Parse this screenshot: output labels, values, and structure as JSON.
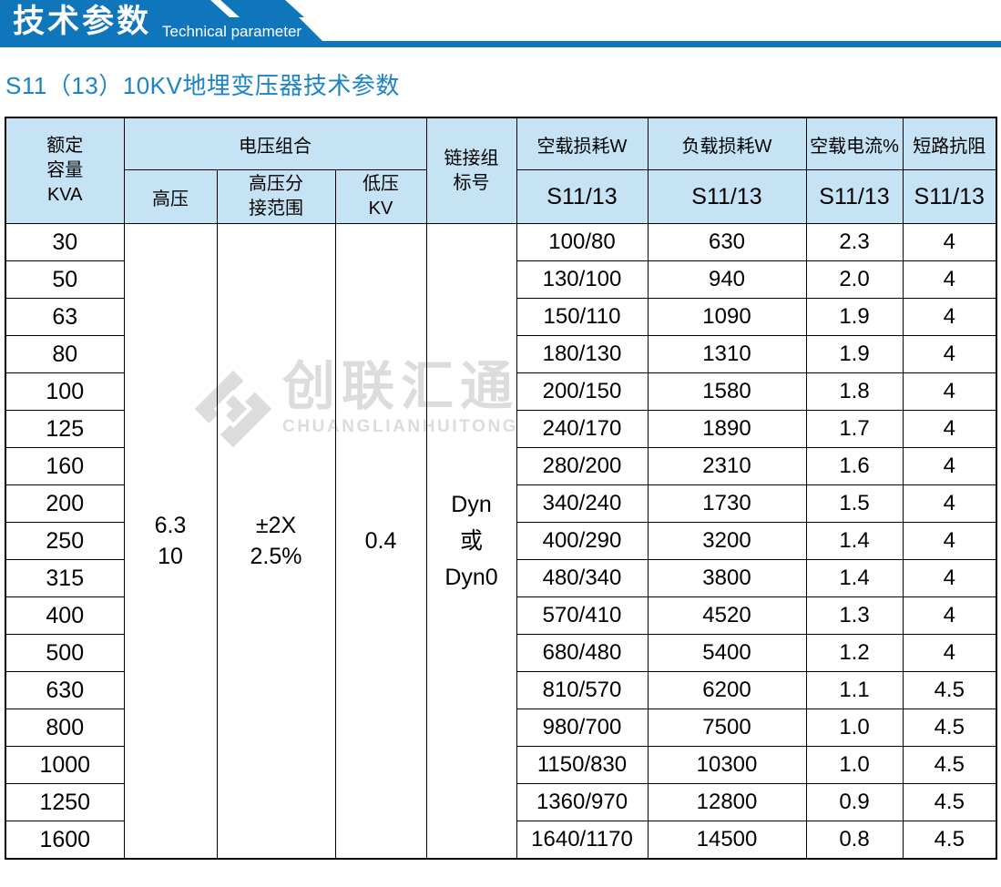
{
  "banner": {
    "title_cn": "技术参数",
    "title_en": "Technical parameter"
  },
  "section_title": "S11（13）10KV地埋变压器技术参数",
  "watermark": {
    "logo_icon": "diamond-logo",
    "cn": "创联汇通",
    "en": "CHUANGLIANHUITONG"
  },
  "colors": {
    "brand_blue": "#0f76bc",
    "header_bg": "#c5e3f5",
    "title_blue": "#1b84c7",
    "watermark_gray": "#dcdcdc",
    "border": "#000000"
  },
  "table": {
    "headers": {
      "capacity": "额定\n容量\nKVA",
      "voltage_group": "电压组合",
      "hv": "高压",
      "hv_tap": "高压分\n接范围",
      "lv": "低压\nKV",
      "vector_group": "链接组\n标号",
      "no_load_loss": "空载损耗W",
      "load_loss": "负载损耗W",
      "no_load_current": "空载电流%",
      "impedance": "短路抗阻",
      "model_sub": "S11/13"
    },
    "merged": {
      "hv": "6.3\n10",
      "hv_tap": "±2X\n2.5%",
      "lv": "0.4",
      "vector_group": "Dyn\n或\nDyn0"
    },
    "rows": [
      {
        "kva": "30",
        "no_load_loss": "100/80",
        "load_loss": "630",
        "no_load_current": "2.3",
        "impedance": "4"
      },
      {
        "kva": "50",
        "no_load_loss": "130/100",
        "load_loss": "940",
        "no_load_current": "2.0",
        "impedance": "4"
      },
      {
        "kva": "63",
        "no_load_loss": "150/110",
        "load_loss": "1090",
        "no_load_current": "1.9",
        "impedance": "4"
      },
      {
        "kva": "80",
        "no_load_loss": "180/130",
        "load_loss": "1310",
        "no_load_current": "1.9",
        "impedance": "4"
      },
      {
        "kva": "100",
        "no_load_loss": "200/150",
        "load_loss": "1580",
        "no_load_current": "1.8",
        "impedance": "4"
      },
      {
        "kva": "125",
        "no_load_loss": "240/170",
        "load_loss": "1890",
        "no_load_current": "1.7",
        "impedance": "4"
      },
      {
        "kva": "160",
        "no_load_loss": "280/200",
        "load_loss": "2310",
        "no_load_current": "1.6",
        "impedance": "4"
      },
      {
        "kva": "200",
        "no_load_loss": "340/240",
        "load_loss": "1730",
        "no_load_current": "1.5",
        "impedance": "4"
      },
      {
        "kva": "250",
        "no_load_loss": "400/290",
        "load_loss": "3200",
        "no_load_current": "1.4",
        "impedance": "4"
      },
      {
        "kva": "315",
        "no_load_loss": "480/340",
        "load_loss": "3800",
        "no_load_current": "1.4",
        "impedance": "4"
      },
      {
        "kva": "400",
        "no_load_loss": "570/410",
        "load_loss": "4520",
        "no_load_current": "1.3",
        "impedance": "4"
      },
      {
        "kva": "500",
        "no_load_loss": "680/480",
        "load_loss": "5400",
        "no_load_current": "1.2",
        "impedance": "4"
      },
      {
        "kva": "630",
        "no_load_loss": "810/570",
        "load_loss": "6200",
        "no_load_current": "1.1",
        "impedance": "4.5"
      },
      {
        "kva": "800",
        "no_load_loss": "980/700",
        "load_loss": "7500",
        "no_load_current": "1.0",
        "impedance": "4.5"
      },
      {
        "kva": "1000",
        "no_load_loss": "1150/830",
        "load_loss": "10300",
        "no_load_current": "1.0",
        "impedance": "4.5"
      },
      {
        "kva": "1250",
        "no_load_loss": "1360/970",
        "load_loss": "12800",
        "no_load_current": "0.9",
        "impedance": "4.5"
      },
      {
        "kva": "1600",
        "no_load_loss": "1640/1170",
        "load_loss": "14500",
        "no_load_current": "0.8",
        "impedance": "4.5"
      }
    ]
  }
}
